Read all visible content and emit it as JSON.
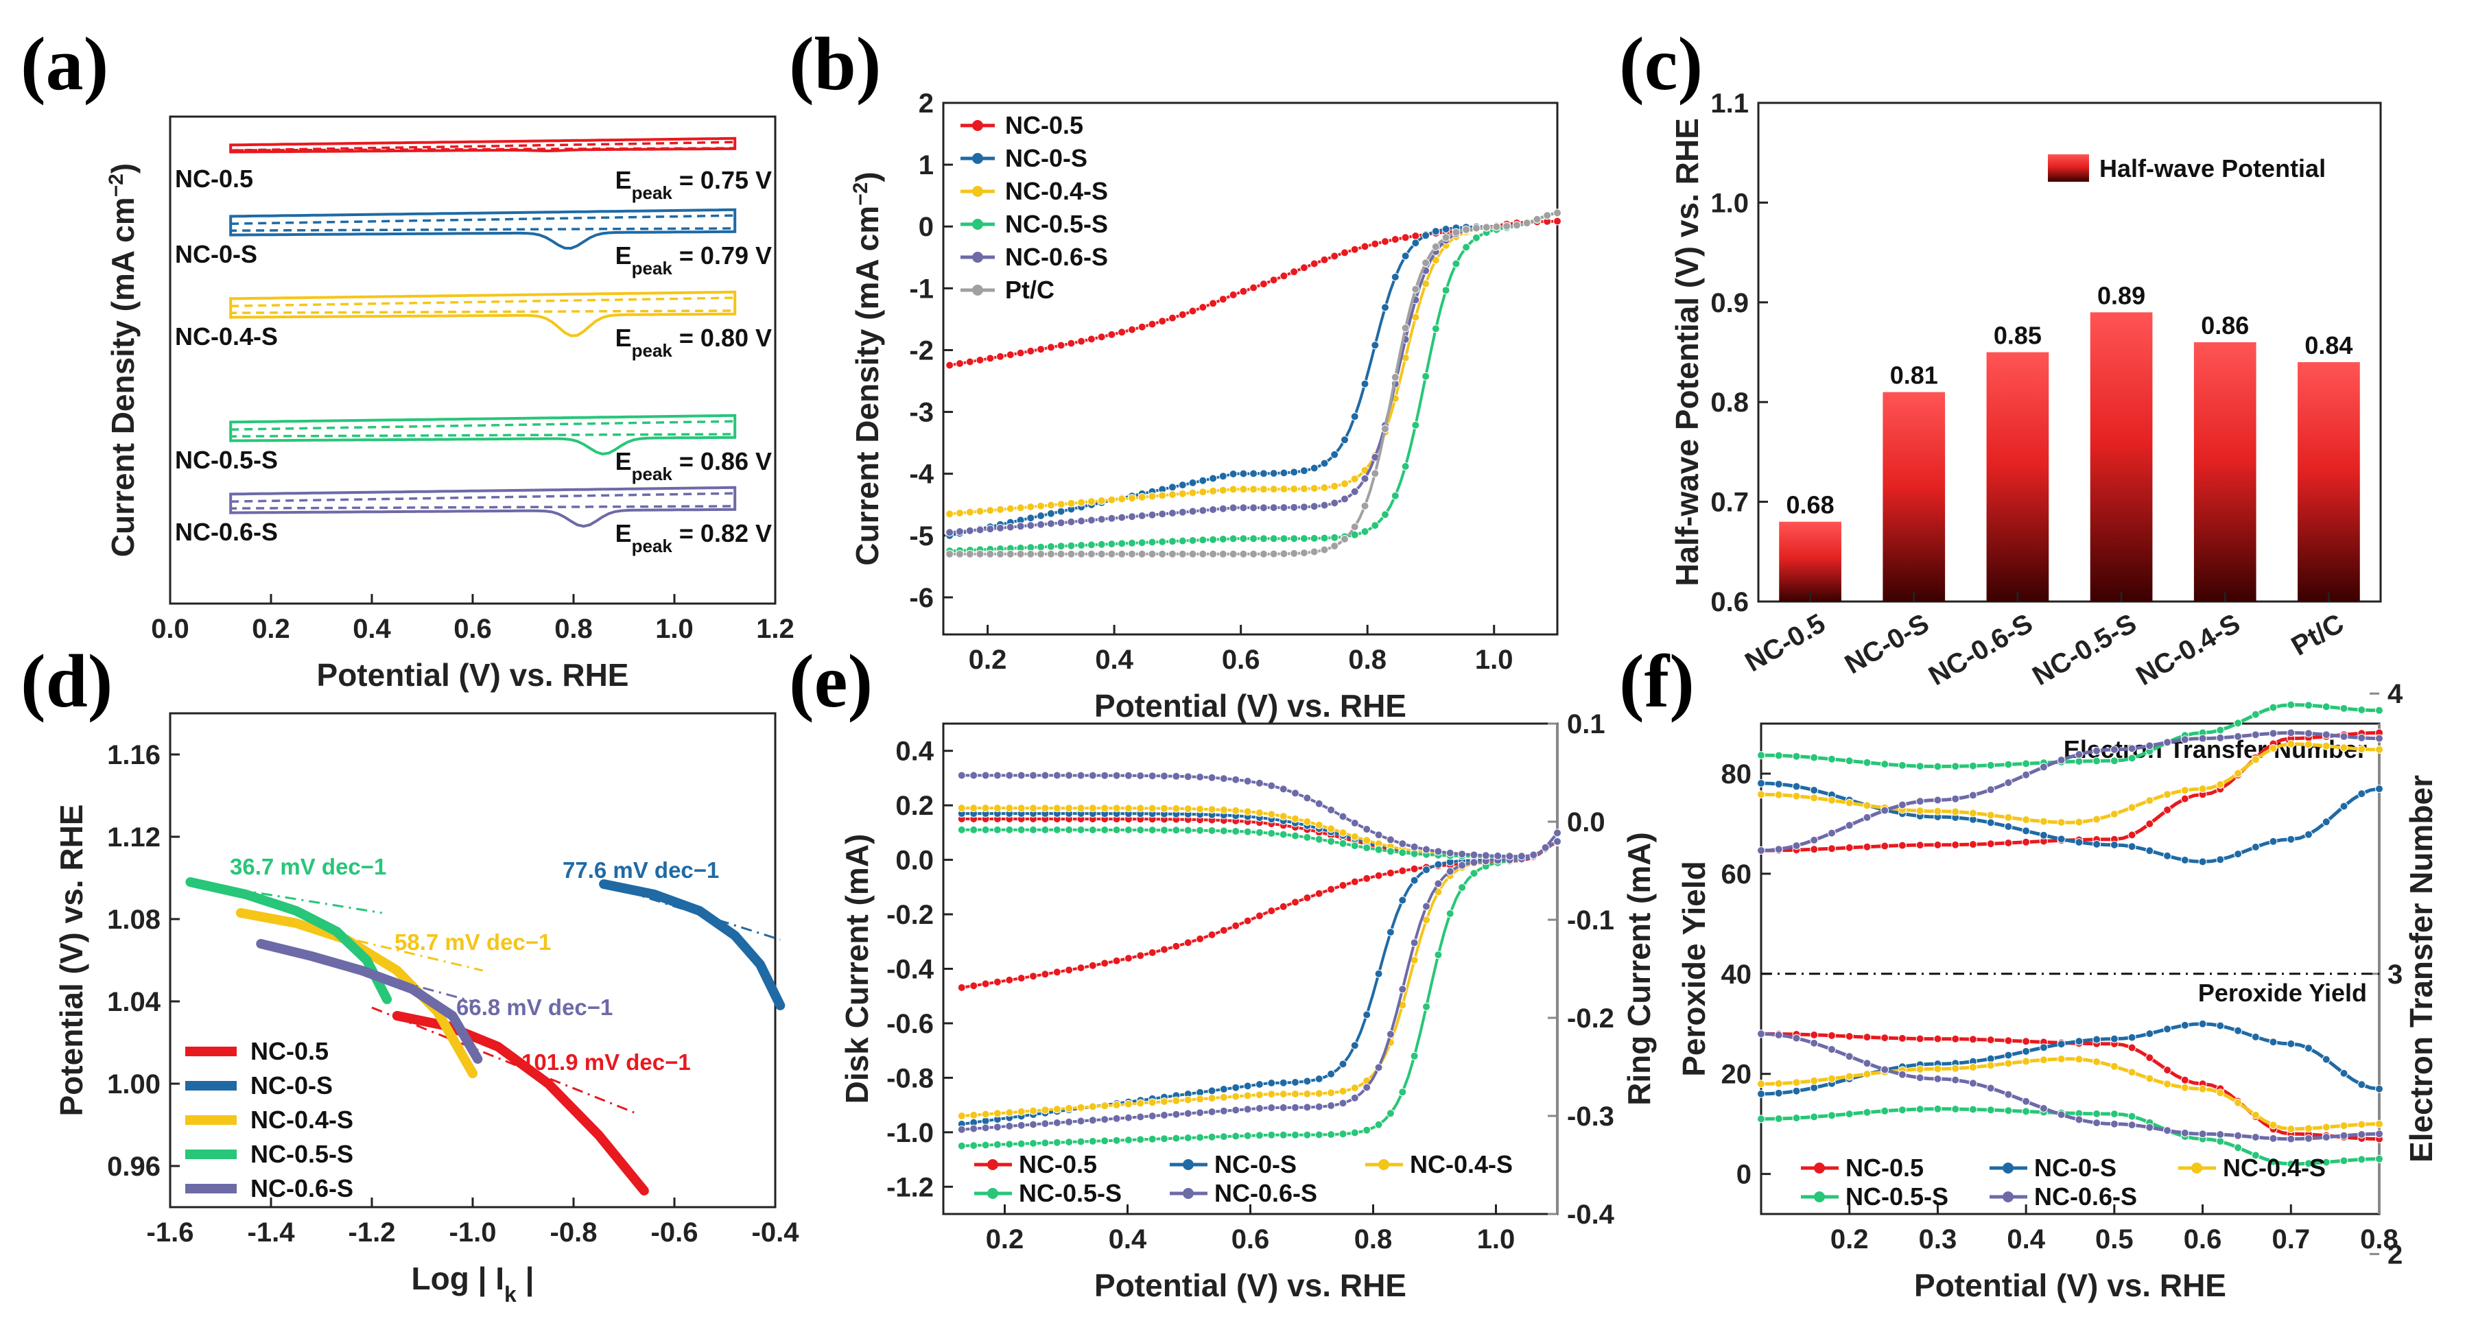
{
  "panels": {
    "a": "(a)",
    "b": "(b)",
    "c": "(c)",
    "d": "(d)",
    "e": "(e)",
    "f": "(f)"
  },
  "colors": {
    "NC-0.5": "#e8191f",
    "NC-0-S": "#1f6aa5",
    "NC-0.4-S": "#f5c518",
    "NC-0.5-S": "#27c678",
    "NC-0.6-S": "#6d6aa8",
    "Pt/C": "#a0a0a0",
    "bar_top": "#ff5a5a",
    "bar_bottom": "#3a0000",
    "grey_axis": "#888888"
  },
  "chart_data": [
    {
      "id": "a",
      "type": "line",
      "title": "",
      "xlabel": "Potential (V) vs. RHE",
      "ylabel": "Current Density (mA cm−2)",
      "xlim": [
        0,
        1.2
      ],
      "xticks": [
        "0.0",
        "0.2",
        "0.4",
        "0.6",
        "0.8",
        "1.0",
        "1.2"
      ],
      "series": [
        {
          "name": "NC-0.5",
          "label": "NC-0.5",
          "epeak_text": "= 0.75 V",
          "epeak": 0.75,
          "dip": 0.1
        },
        {
          "name": "NC-0-S",
          "label": "NC-0-S",
          "epeak_text": "= 0.79 V",
          "epeak": 0.79,
          "dip": 0.6
        },
        {
          "name": "NC-0.4-S",
          "label": "NC-0.4-S",
          "epeak_text": "= 0.80 V",
          "epeak": 0.8,
          "dip": 0.8
        },
        {
          "name": "NC-0.5-S",
          "label": "NC-0.5-S",
          "epeak_text": "= 0.86 V",
          "epeak": 0.86,
          "dip": 0.6
        },
        {
          "name": "NC-0.6-S",
          "label": "NC-0.6-S",
          "epeak_text": "= 0.82 V",
          "epeak": 0.82,
          "dip": 0.6
        }
      ],
      "epeak_prefix": "E",
      "epeak_sub": "peak"
    },
    {
      "id": "b",
      "type": "line",
      "xlabel": "Potential (V) vs. RHE",
      "ylabel": "Current Density (mA cm−2)",
      "xlim": [
        0.13,
        1.1
      ],
      "ylim": [
        -6.6,
        2
      ],
      "xticks": [
        "0.2",
        "0.4",
        "0.6",
        "0.8",
        "1.0"
      ],
      "yticks": [
        "2",
        "1",
        "0",
        "-1",
        "-2",
        "-3",
        "-4",
        "-5",
        "-6"
      ],
      "series": [
        {
          "name": "NC-0.5",
          "start": -2.25,
          "plateau": -1.5,
          "onset": 0.9,
          "half": 0.68
        },
        {
          "name": "NC-0-S",
          "start": -5.0,
          "plateau": -4.0,
          "onset": 0.97,
          "half": 0.81
        },
        {
          "name": "NC-0.4-S",
          "start": -4.65,
          "plateau": -4.25,
          "onset": 0.98,
          "half": 0.86
        },
        {
          "name": "NC-0.5-S",
          "start": -5.25,
          "plateau": -5.05,
          "onset": 1.0,
          "half": 0.89
        },
        {
          "name": "NC-0.6-S",
          "start": -4.95,
          "plateau": -4.55,
          "onset": 0.98,
          "half": 0.85
        },
        {
          "name": "Pt/C",
          "start": -5.3,
          "plateau": -5.3,
          "onset": 0.98,
          "half": 0.84
        }
      ]
    },
    {
      "id": "c",
      "type": "bar",
      "ylabel": "Half-wave Potential (V) vs. RHE",
      "categories": [
        "NC-0.5",
        "NC-0-S",
        "NC-0.6-S",
        "NC-0.5-S",
        "NC-0.4-S",
        "Pt/C"
      ],
      "values": [
        0.68,
        0.81,
        0.85,
        0.89,
        0.86,
        0.84
      ],
      "value_labels": [
        "0.68",
        "0.81",
        "0.85",
        "0.89",
        "0.86",
        "0.84"
      ],
      "ylim": [
        0.6,
        1.1
      ],
      "yticks": [
        "0.6",
        "0.7",
        "0.8",
        "0.9",
        "1.0",
        "1.1"
      ],
      "legend": "Half-wave Potential"
    },
    {
      "id": "d",
      "type": "line",
      "xlabel": "Log | I",
      "xlabel_sub": "k",
      "xlabel_end": " |",
      "ylabel": "Potential (V) vs. RHE",
      "xlim": [
        -1.6,
        -0.4
      ],
      "ylim": [
        0.94,
        1.18
      ],
      "xticks": [
        "-1.6",
        "-1.4",
        "-1.2",
        "-1.0",
        "-0.8",
        "-0.6",
        "-0.4"
      ],
      "yticks": [
        "0.96",
        "1.00",
        "1.04",
        "1.08",
        "1.12",
        "1.16"
      ],
      "series": [
        {
          "name": "NC-0.5",
          "x": [
            -1.15,
            -1.05,
            -0.95,
            -0.85,
            -0.75,
            -0.66
          ],
          "y": [
            1.033,
            1.028,
            1.018,
            1.0,
            0.975,
            0.948
          ],
          "fit": [
            [
              -1.2,
              1.037
            ],
            [
              -0.68,
              0.986
            ]
          ],
          "tafel": "101.9 mV dec−1"
        },
        {
          "name": "NC-0-S",
          "x": [
            -0.74,
            -0.64,
            -0.55,
            -0.48,
            -0.43,
            -0.39
          ],
          "y": [
            1.097,
            1.092,
            1.084,
            1.072,
            1.058,
            1.038
          ],
          "fit": [
            [
              -0.74,
              1.097
            ],
            [
              -0.39,
              1.07
            ]
          ],
          "tafel": "77.6 mV dec−1"
        },
        {
          "name": "NC-0.4-S",
          "x": [
            -1.46,
            -1.35,
            -1.25,
            -1.15,
            -1.07,
            -1.0
          ],
          "y": [
            1.083,
            1.078,
            1.07,
            1.055,
            1.035,
            1.005
          ],
          "fit": [
            [
              -1.46,
              1.083
            ],
            [
              -0.98,
              1.055
            ]
          ],
          "tafel": "58.7 mV dec−1"
        },
        {
          "name": "NC-0.5-S",
          "x": [
            -1.56,
            -1.45,
            -1.35,
            -1.27,
            -1.21,
            -1.17
          ],
          "y": [
            1.098,
            1.092,
            1.084,
            1.074,
            1.06,
            1.041
          ],
          "fit": [
            [
              -1.56,
              1.098
            ],
            [
              -1.18,
              1.083
            ]
          ],
          "tafel": "36.7 mV dec−1"
        },
        {
          "name": "NC-0.6-S",
          "x": [
            -1.42,
            -1.32,
            -1.22,
            -1.12,
            -1.04,
            -0.99
          ],
          "y": [
            1.068,
            1.062,
            1.055,
            1.046,
            1.033,
            1.012
          ],
          "fit": [
            [
              -1.42,
              1.068
            ],
            [
              -1.0,
              1.04
            ]
          ],
          "tafel": "66.8 mV dec−1"
        }
      ]
    },
    {
      "id": "e",
      "type": "line",
      "xlabel": "Potential (V) vs. RHE",
      "ylabel": "Disk Current (mA)",
      "ylabel_right": "Ring Current (mA)",
      "xlim": [
        0.1,
        1.1
      ],
      "ylim": [
        -1.3,
        0.5
      ],
      "ylim_right": [
        -0.4,
        0.1
      ],
      "xticks": [
        "0.2",
        "0.4",
        "0.6",
        "0.8",
        "1.0"
      ],
      "yticks": [
        "0.4",
        "0.2",
        "0.0",
        "-0.2",
        "-0.4",
        "-0.6",
        "-0.8",
        "-1.0",
        "-1.2"
      ],
      "yticks_right": [
        "0.1",
        "0.0",
        "-0.1",
        "-0.2",
        "-0.3",
        "-0.4"
      ],
      "series": [
        {
          "name": "NC-0.5",
          "disk_start": -0.47,
          "disk_plateau": -0.3,
          "half": 0.68,
          "ring": 0.14
        },
        {
          "name": "NC-0-S",
          "disk_start": -0.97,
          "disk_plateau": -0.82,
          "half": 0.81,
          "ring": 0.16
        },
        {
          "name": "NC-0.4-S",
          "disk_start": -0.94,
          "disk_plateau": -0.86,
          "half": 0.86,
          "ring": 0.18
        },
        {
          "name": "NC-0.5-S",
          "disk_start": -1.05,
          "disk_plateau": -1.01,
          "half": 0.89,
          "ring": 0.1
        },
        {
          "name": "NC-0.6-S",
          "disk_start": -0.99,
          "disk_plateau": -0.91,
          "half": 0.85,
          "ring": 0.3
        }
      ]
    },
    {
      "id": "f",
      "type": "line",
      "xlabel": "Potential (V) vs. RHE",
      "ylabel": "Peroxide Yield",
      "ylabel_right": "Electron Transfer Number",
      "xlim": [
        0.1,
        0.8
      ],
      "ylim": [
        -8,
        90
      ],
      "xticks": [
        "0.2",
        "0.3",
        "0.4",
        "0.5",
        "0.6",
        "0.7",
        "0.8"
      ],
      "yticks": [
        "0",
        "20",
        "40",
        "60",
        "80"
      ],
      "yticks_right": [
        "2",
        "3",
        "4"
      ],
      "top_label": "Electron Transfer Number",
      "bottom_label": "Peroxide Yield",
      "series": [
        {
          "name": "NC-0.5",
          "h2o2": [
            [
              0.1,
              28
            ],
            [
              0.3,
              27
            ],
            [
              0.5,
              26
            ],
            [
              0.6,
              18
            ],
            [
              0.7,
              8
            ],
            [
              0.8,
              7
            ]
          ]
        },
        {
          "name": "NC-0-S",
          "h2o2": [
            [
              0.1,
              16
            ],
            [
              0.3,
              22
            ],
            [
              0.5,
              27
            ],
            [
              0.6,
              30
            ],
            [
              0.7,
              26
            ],
            [
              0.8,
              17
            ]
          ]
        },
        {
          "name": "NC-0.4-S",
          "h2o2": [
            [
              0.1,
              18
            ],
            [
              0.3,
              21
            ],
            [
              0.45,
              23
            ],
            [
              0.6,
              17
            ],
            [
              0.7,
              9
            ],
            [
              0.8,
              10
            ]
          ]
        },
        {
          "name": "NC-0.5-S",
          "h2o2": [
            [
              0.1,
              11
            ],
            [
              0.3,
              13
            ],
            [
              0.5,
              12
            ],
            [
              0.6,
              7
            ],
            [
              0.7,
              2
            ],
            [
              0.8,
              3
            ]
          ]
        },
        {
          "name": "NC-0.6-S",
          "h2o2": [
            [
              0.1,
              28
            ],
            [
              0.3,
              19
            ],
            [
              0.5,
              10
            ],
            [
              0.6,
              8
            ],
            [
              0.7,
              7
            ],
            [
              0.8,
              8
            ]
          ]
        }
      ]
    }
  ]
}
